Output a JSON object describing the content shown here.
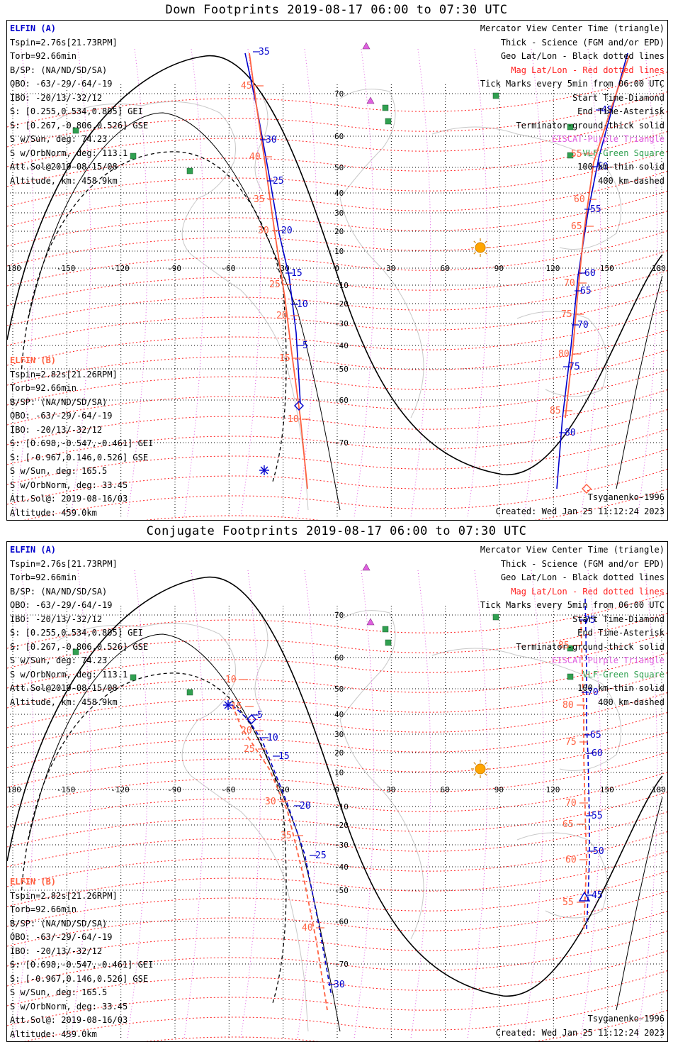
{
  "panels": [
    {
      "title": "Down Footprints 2019-08-17 06:00 to 07:30 UTC",
      "sat_a": {
        "name": "ELFIN (A)",
        "lines": [
          "Tspin=2.76s[21.73RPM]",
          "Torb=92.66min",
          "B/SP: (NA/ND/SD/SA)",
          "OBO: -63/-29/-64/-19",
          "IBO: -20/13/-32/12",
          "S: [0.255,0.534,0.805] GEI",
          "S: [0.267,-0.806,0.526] GSE",
          "S w/Sun, deg: 74.23",
          "S w/OrbNorm, deg: 113.1",
          "Att.Sol@2019-08-15/08",
          "Altitude, km: 458.9km"
        ]
      },
      "sat_b": {
        "name": "ELFIN (B)",
        "lines": [
          "Tspin=2.82s[21.26RPM]",
          "Torb=92.66min",
          "B/SP: (NA/ND/SD/SA)",
          "OBO: -63/-29/-64/-19",
          "IBO: -20/13/-32/12",
          "S: [0.698,-0.547,-0.461] GEI",
          "S: [-0.967,0.146,0.526] GSE",
          "S w/Sun, deg: 165.5",
          "S w/OrbNorm, deg: 33.45",
          "Att.Sol@: 2019-08-16/03",
          "Altitude: 459.0km"
        ]
      },
      "legend": [
        {
          "text": "Mercator View Center Time (triangle)",
          "color": "black"
        },
        {
          "text": "Thick - Science (FGM and/or EPD)",
          "color": "black"
        },
        {
          "text": "Geo Lat/Lon - Black dotted lines",
          "color": "black"
        },
        {
          "text": "Mag Lat/Lon - Red dotted lines",
          "color": "red"
        },
        {
          "text": "Tick Marks every 5min from 06:00 UTC",
          "color": "black"
        },
        {
          "text": "Start Time-Diamond",
          "color": "black"
        },
        {
          "text": "End Time-Asterisk",
          "color": "black"
        },
        {
          "text": "Terminator-ground-thick solid",
          "color": "black"
        },
        {
          "text": "EISCAT-Purple Triangle",
          "color": "violet"
        },
        {
          "text": "VLF-Green Square",
          "color": "green"
        },
        {
          "text": "100 km-thin solid",
          "color": "black"
        },
        {
          "text": "400 km-dashed",
          "color": "black"
        }
      ],
      "model": "Tsyganenko-1996",
      "created": "Created: Wed Jan 25 11:12:24 2023",
      "trace_a_labels": [
        "35",
        "30",
        "25",
        "20",
        "15",
        "10",
        "5",
        "45",
        "50",
        "55",
        "60",
        "65",
        "70",
        "75",
        "80"
      ],
      "trace_b_labels": [
        "45",
        "40",
        "35",
        "30",
        "25",
        "20",
        "15",
        "10",
        "55",
        "60",
        "65",
        "70",
        "75",
        "80",
        "85"
      ]
    },
    {
      "title": "Conjugate Footprints 2019-08-17 06:00 to 07:30 UTC",
      "sat_a": {
        "name": "ELFIN (A)",
        "lines": [
          "Tspin=2.76s[21.73RPM]",
          "Torb=92.66min",
          "B/SP: (NA/ND/SD/SA)",
          "OBO: -63/-29/-64/-19",
          "IBO: -20/13/-32/12",
          "S: [0.255,0.534,0.805] GEI",
          "S: [0.267,-0.806,0.526] GSE",
          "S w/Sun, deg: 74.23",
          "S w/OrbNorm, deg: 113.1",
          "Att.Sol@2019-08-15/08",
          "Altitude, km: 458.9km"
        ]
      },
      "sat_b": {
        "name": "ELFIN (B)",
        "lines": [
          "Tspin=2.82s[21.26RPM]",
          "Torb=92.66min",
          "B/SP: (NA/ND/SD/SA)",
          "OBO: -63/-29/-64/-19",
          "IBO: -20/13/-32/12",
          "S: [0.698,-0.547,-0.461] GEI",
          "S: [-0.967,0.146,0.526] GSE",
          "S w/Sun, deg: 165.5",
          "S w/OrbNorm, deg: 33.45",
          "Att.Sol@: 2019-08-16/03",
          "Altitude: 459.0km"
        ]
      },
      "legend": [
        {
          "text": "Mercator View Center Time (triangle)",
          "color": "black"
        },
        {
          "text": "Thick - Science (FGM and/or EPD)",
          "color": "black"
        },
        {
          "text": "Geo Lat/Lon - Black dotted lines",
          "color": "black"
        },
        {
          "text": "Mag Lat/Lon - Red dotted lines",
          "color": "red"
        },
        {
          "text": "Tick Marks every 5min from 06:00 UTC",
          "color": "black"
        },
        {
          "text": "Start Time-Diamond",
          "color": "black"
        },
        {
          "text": "End Time-Asterisk",
          "color": "black"
        },
        {
          "text": "Terminator-ground-thick solid",
          "color": "black"
        },
        {
          "text": "EISCAT-Purple Triangle",
          "color": "violet"
        },
        {
          "text": "VLF-Green Square",
          "color": "green"
        },
        {
          "text": "100 km-thin solid",
          "color": "black"
        },
        {
          "text": "400 km-dashed",
          "color": "black"
        }
      ],
      "model": "Tsyganenko-1996",
      "created": "Created: Wed Jan 25 11:12:24 2023",
      "trace_a_labels": [
        "5",
        "10",
        "15",
        "20",
        "25",
        "30",
        "75",
        "70",
        "65",
        "60",
        "55",
        "50",
        "45"
      ],
      "trace_b_labels": [
        "10",
        "15",
        "20",
        "25",
        "30",
        "35",
        "40",
        "85",
        "80",
        "75",
        "70",
        "65",
        "60",
        "55"
      ]
    }
  ],
  "map": {
    "lon_labels": [
      "180",
      "-150",
      "-120",
      "-90",
      "-60",
      "-30",
      "0",
      "30",
      "60",
      "90",
      "120",
      "150",
      "180"
    ],
    "lat_labels": [
      "70",
      "60",
      "50",
      "40",
      "30",
      "20",
      "10",
      "-10",
      "-20",
      "-30",
      "-40",
      "-50",
      "-60",
      "-70"
    ],
    "colors": {
      "sat_a": "#0000cc",
      "sat_b": "#ff6040",
      "mag_grid": "#ff2020",
      "eiscat": "#e060e0",
      "vlf": "#30a050",
      "sun": "#ffa500"
    }
  }
}
